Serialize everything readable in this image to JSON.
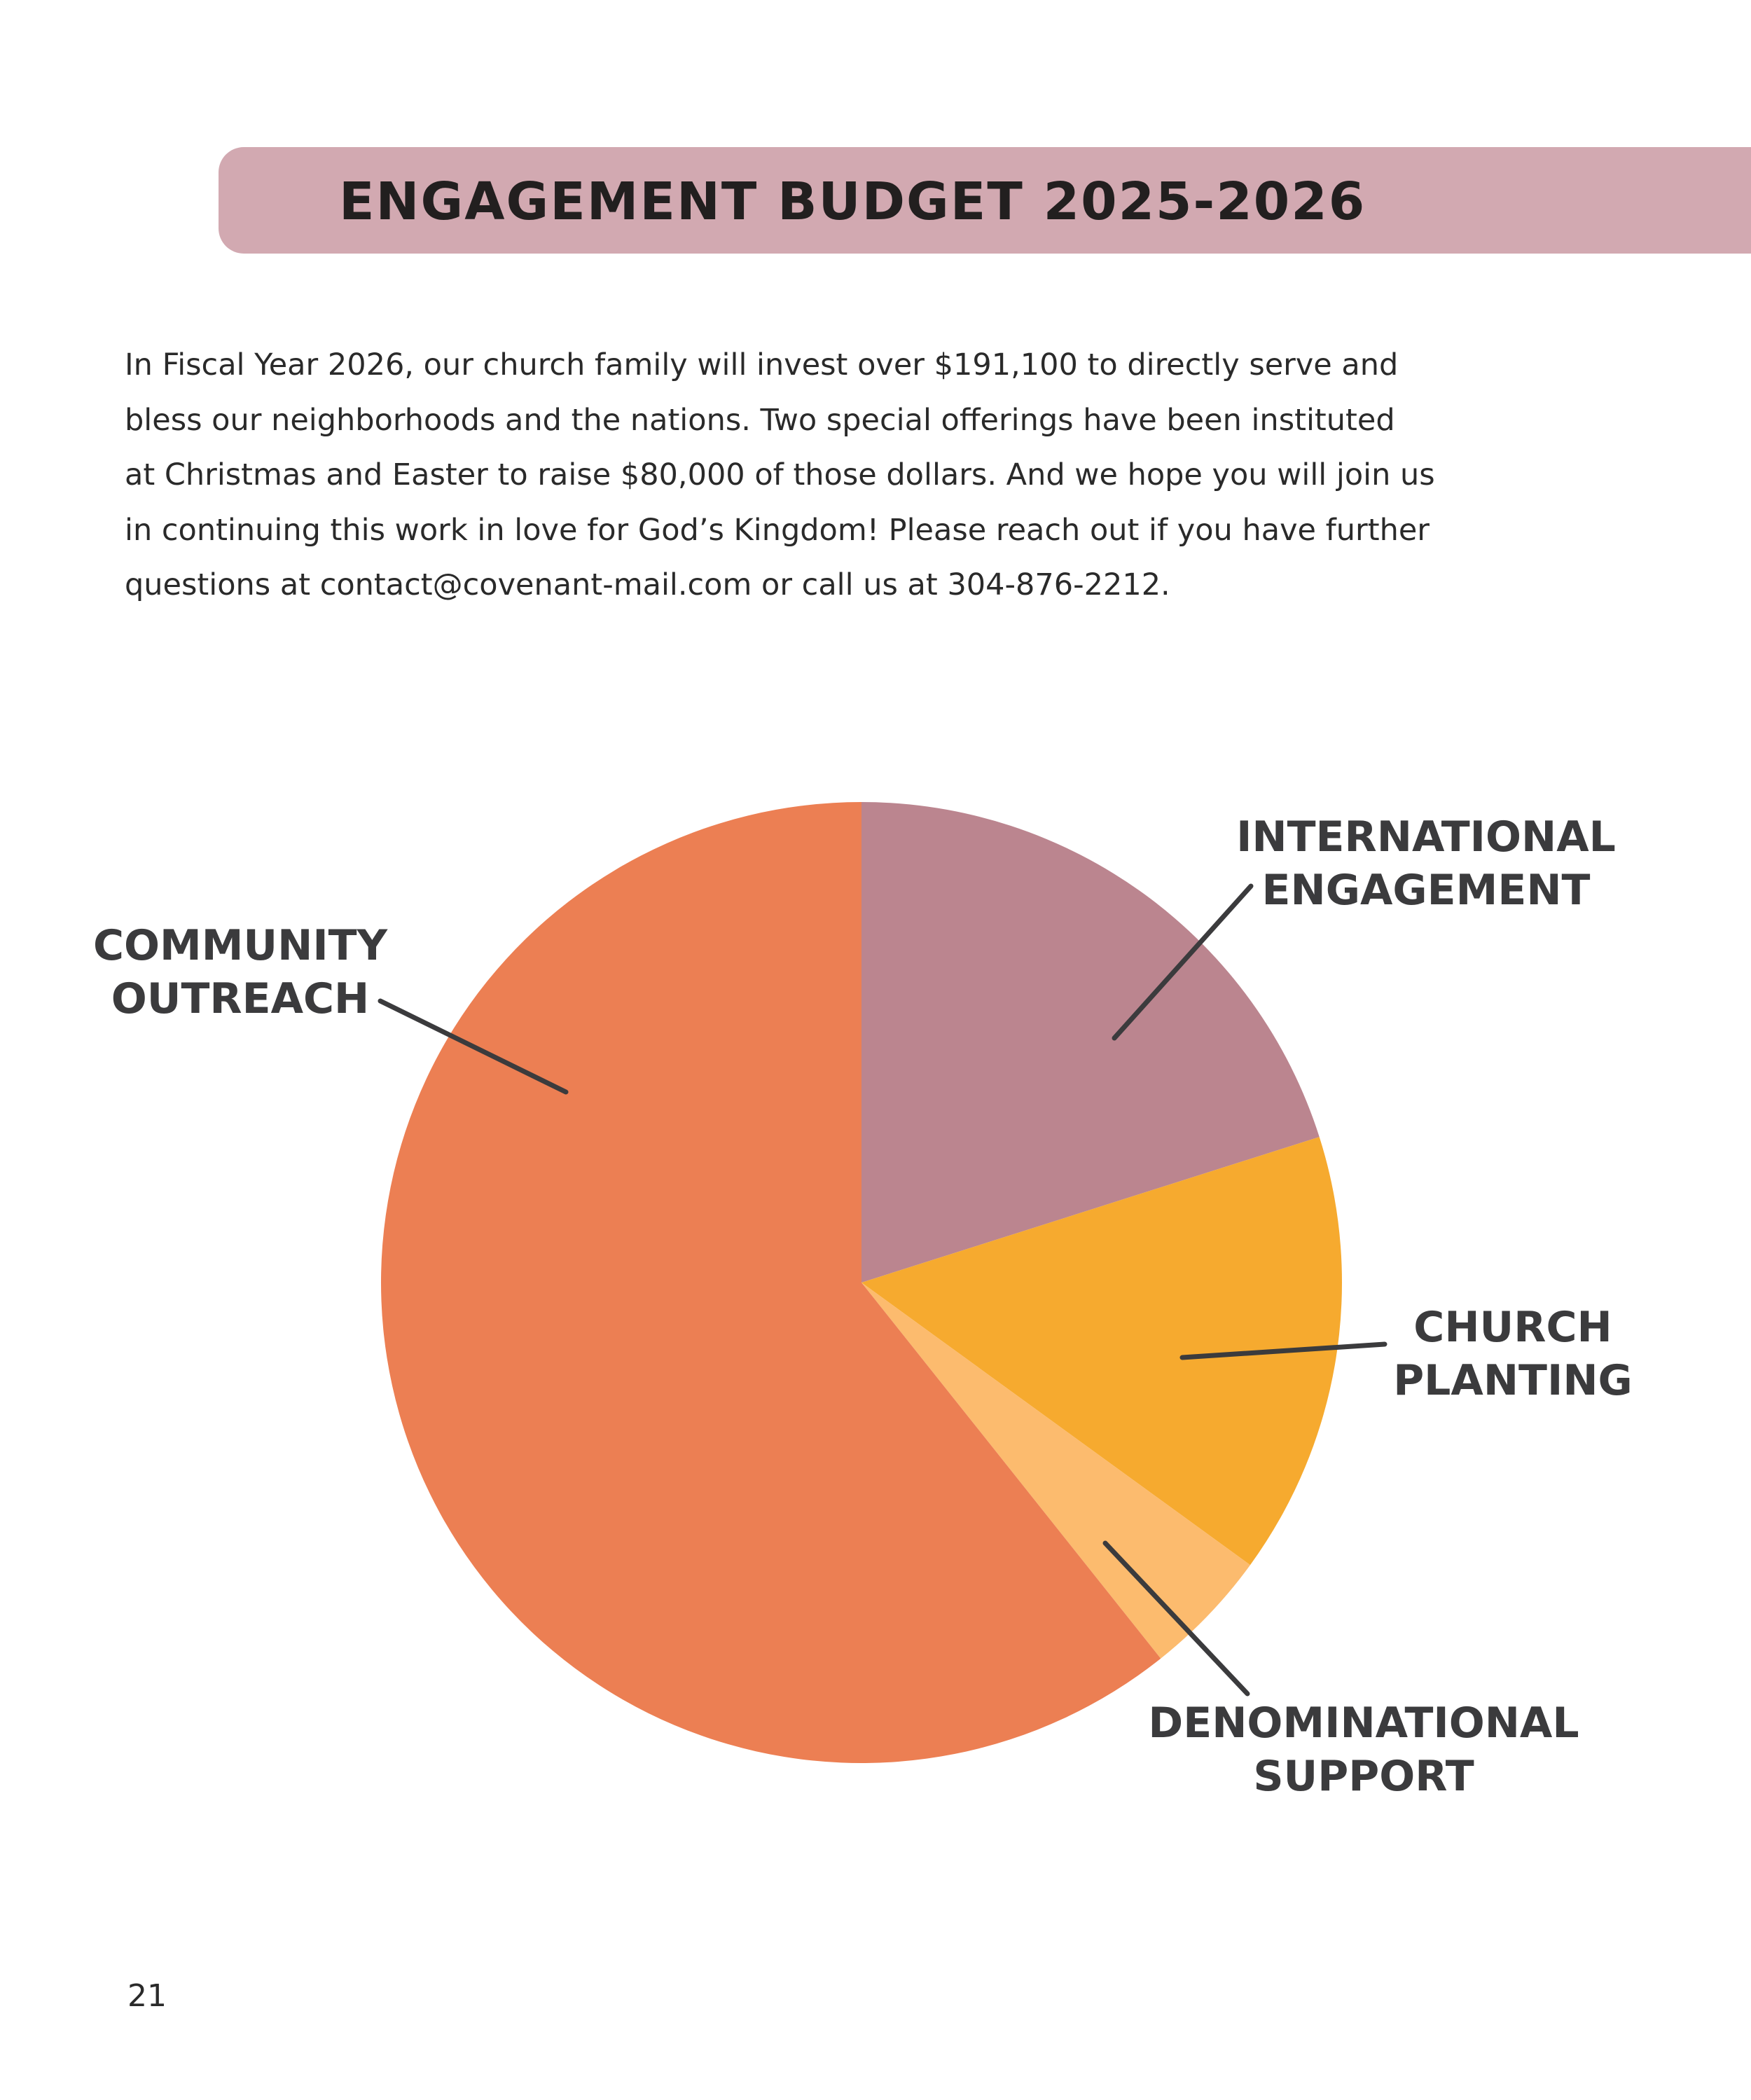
{
  "header": {
    "title": "ENGAGEMENT BUDGET 2025-2026"
  },
  "intro": {
    "lines": [
      "In Fiscal Year 2026, our church family will invest over $191,100 to directly serve and",
      "bless our neighborhoods and the nations. Two special offerings have been instituted",
      "at Christmas and Easter to raise $80,000 of those dollars. And we hope you will join us",
      "in continuing this work in love for God’s Kingdom! Please reach out if you have further",
      "questions at contact@covenant-mail.com or call us at 304-876-2212."
    ]
  },
  "chart_data": {
    "type": "pie",
    "categories": [
      "INTERNATIONAL ENGAGEMENT",
      "CHURCH PLANTING",
      "DENOMINATIONAL SUPPORT",
      "COMMUNITY OUTREACH"
    ],
    "values": [
      20.1,
      14.9,
      4.3,
      60.7
    ],
    "label_lines": [
      [
        "INTERNATIONAL",
        "ENGAGEMENT"
      ],
      [
        "CHURCH",
        "PLANTING"
      ],
      [
        "DENOMINATIONAL",
        "SUPPORT"
      ],
      [
        "COMMUNITY",
        "OUTREACH"
      ]
    ],
    "colors": [
      "#bb858f",
      "#f6aa2f",
      "#fcbb6e",
      "#ec7f53"
    ],
    "start_angle": "12 o'clock",
    "direction": "clockwise",
    "legend": "none"
  },
  "footer": {
    "page_number": "21"
  }
}
